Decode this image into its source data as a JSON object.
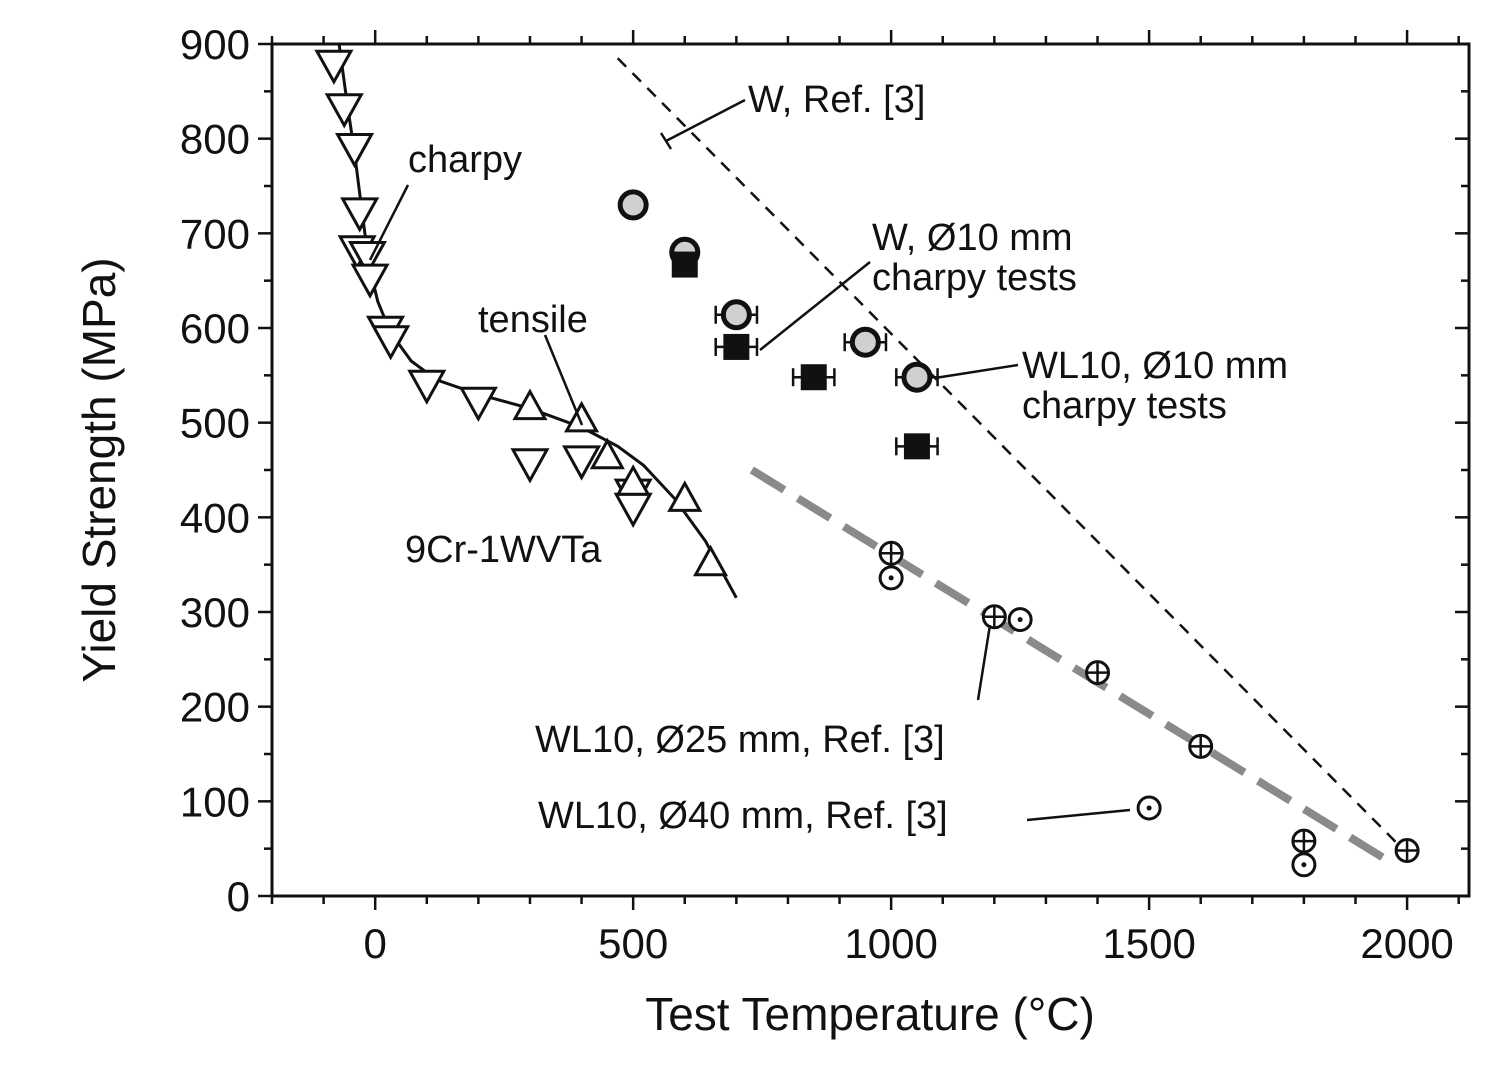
{
  "chart_data": {
    "type": "scatter",
    "xlabel": "Test Temperature (°C)",
    "ylabel": "Yield Strength (MPa)",
    "xlim": [
      -200,
      2120
    ],
    "ylim": [
      0,
      900
    ],
    "x_ticks": [
      0,
      500,
      1000,
      1500,
      2000
    ],
    "y_ticks": [
      0,
      100,
      200,
      300,
      400,
      500,
      600,
      700,
      800,
      900
    ],
    "grid": false,
    "series": [
      {
        "marker": "triangle-down-open",
        "points": [
          [
            -80,
            878
          ],
          [
            -60,
            832
          ],
          [
            -40,
            790
          ],
          [
            -30,
            722
          ],
          [
            -35,
            682
          ],
          [
            -15,
            676
          ],
          [
            -10,
            652
          ],
          [
            20,
            597
          ],
          [
            30,
            587
          ],
          [
            100,
            540
          ],
          [
            200,
            522
          ],
          [
            300,
            457
          ],
          [
            400,
            460
          ],
          [
            500,
            425
          ],
          [
            500,
            410
          ]
        ]
      },
      {
        "marker": "triangle-up-open",
        "points": [
          [
            300,
            517
          ],
          [
            400,
            504
          ],
          [
            450,
            465
          ],
          [
            500,
            437
          ],
          [
            600,
            420
          ],
          [
            650,
            352
          ]
        ]
      },
      {
        "marker": "circle-gray",
        "points": [
          [
            500,
            730
          ],
          [
            600,
            680
          ],
          [
            700,
            614
          ],
          [
            950,
            585
          ],
          [
            1050,
            548
          ]
        ],
        "xerr": [
          0,
          0,
          40,
          40,
          40
        ]
      },
      {
        "marker": "square-filled",
        "points": [
          [
            600,
            667
          ],
          [
            700,
            580
          ],
          [
            850,
            548
          ],
          [
            1050,
            475
          ]
        ],
        "xerr": [
          0,
          40,
          40,
          40
        ]
      },
      {
        "marker": "circle-plus",
        "points": [
          [
            1000,
            362
          ],
          [
            1200,
            295
          ],
          [
            1400,
            236
          ],
          [
            1600,
            158
          ],
          [
            1800,
            58
          ],
          [
            2000,
            48
          ]
        ]
      },
      {
        "marker": "circle-dot",
        "points": [
          [
            1000,
            336
          ],
          [
            1250,
            292
          ],
          [
            1500,
            93
          ],
          [
            1800,
            33
          ]
        ]
      }
    ],
    "curves": [
      {
        "style": "solid",
        "points": [
          [
            -70,
            900
          ],
          [
            -55,
            840
          ],
          [
            -40,
            785
          ],
          [
            -30,
            742
          ],
          [
            -20,
            700
          ],
          [
            -10,
            662
          ],
          [
            5,
            628
          ],
          [
            30,
            595
          ],
          [
            70,
            565
          ],
          [
            120,
            545
          ],
          [
            200,
            530
          ],
          [
            300,
            515
          ],
          [
            400,
            495
          ],
          [
            470,
            475
          ],
          [
            520,
            455
          ],
          [
            580,
            420
          ],
          [
            640,
            375
          ],
          [
            700,
            315
          ]
        ]
      },
      {
        "style": "dashed-thin",
        "points": [
          [
            470,
            885
          ],
          [
            2000,
            45
          ]
        ]
      },
      {
        "style": "dashed-thick-gray",
        "points": [
          [
            730,
            450
          ],
          [
            1970,
            35
          ]
        ]
      }
    ],
    "annotations": {
      "charpy": "charpy",
      "tensile": "tensile",
      "ferritic": "9Cr-1WVTa",
      "w_ref": "W, Ref. [3]",
      "w_charpy_line1": "W, Ø10 mm",
      "w_charpy_line2": "charpy tests",
      "wl10_charpy_line1": "WL10, Ø10 mm",
      "wl10_charpy_line2": "charpy tests",
      "wl10_25": "WL10, Ø25 mm, Ref. [3]",
      "wl10_40": "WL10, Ø40 mm, Ref. [3]"
    }
  }
}
